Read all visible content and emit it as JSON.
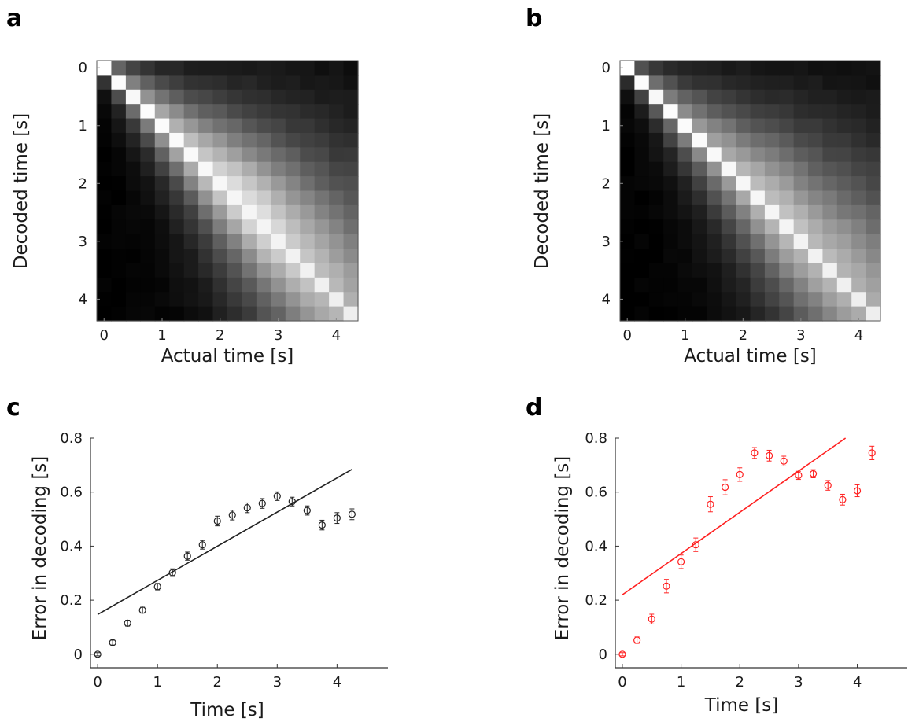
{
  "chart_data": [
    {
      "panel": "a",
      "type": "heatmap",
      "xlabel": "Actual time [s]",
      "ylabel": "Decoded time [s]",
      "x_ticks": [
        "0",
        "1",
        "2",
        "3",
        "4"
      ],
      "y_ticks": [
        "0",
        "1",
        "2",
        "3",
        "4"
      ],
      "xlim": [
        -0.125,
        4.375
      ],
      "ylim": [
        -0.125,
        4.375
      ],
      "bin_size": 0.25,
      "colormap": "grayscale",
      "off_diagonal_gain": 0.59,
      "off_diagonal_gain_fade": 0.35
    },
    {
      "panel": "b",
      "type": "heatmap",
      "xlabel": "Actual time [s]",
      "ylabel": "Decoded time [s]",
      "x_ticks": [
        "0",
        "1",
        "2",
        "3",
        "4"
      ],
      "y_ticks": [
        "0",
        "1",
        "2",
        "3",
        "4"
      ],
      "xlim": [
        -0.125,
        4.375
      ],
      "ylim": [
        -0.125,
        4.375
      ],
      "bin_size": 0.25,
      "colormap": "grayscale",
      "off_diagonal_gain": 0.5,
      "off_diagonal_gain_fade": 0.18
    },
    {
      "panel": "c",
      "type": "scatter",
      "color": "#222222",
      "xlabel": "Time [s]",
      "ylabel": "Error in decoding [s]",
      "x_ticks": [
        "0",
        "1",
        "2",
        "3",
        "4"
      ],
      "y_ticks": [
        "0",
        "0.2",
        "0.4",
        "0.6",
        "0.8"
      ],
      "xlim": [
        -0.12,
        4.85
      ],
      "ylim": [
        -0.05,
        0.8
      ],
      "x": [
        0,
        0.25,
        0.5,
        0.75,
        1,
        1.25,
        1.5,
        1.75,
        2,
        2.25,
        2.5,
        2.75,
        3,
        3.25,
        3.5,
        3.75,
        4,
        4.25
      ],
      "y": [
        0.0,
        0.043,
        0.115,
        0.163,
        0.25,
        0.302,
        0.363,
        0.405,
        0.493,
        0.515,
        0.542,
        0.558,
        0.585,
        0.565,
        0.532,
        0.478,
        0.504,
        0.518
      ],
      "errors": [
        0.006,
        0.009,
        0.011,
        0.011,
        0.012,
        0.014,
        0.015,
        0.016,
        0.018,
        0.018,
        0.018,
        0.018,
        0.016,
        0.016,
        0.017,
        0.018,
        0.02,
        0.02
      ],
      "fit_line": {
        "x": [
          0,
          4.25
        ],
        "y": [
          0.147,
          0.684
        ]
      }
    },
    {
      "panel": "d",
      "type": "scatter",
      "color": "#ff2020",
      "xlabel": "Time [s]",
      "ylabel": "Error in decoding [s]",
      "x_ticks": [
        "0",
        "1",
        "2",
        "3",
        "4"
      ],
      "y_ticks": [
        "0",
        "0.2",
        "0.4",
        "0.6",
        "0.8"
      ],
      "xlim": [
        -0.12,
        4.85
      ],
      "ylim": [
        -0.05,
        0.8
      ],
      "x": [
        0,
        0.25,
        0.5,
        0.75,
        1,
        1.25,
        1.5,
        1.75,
        2,
        2.25,
        2.5,
        2.75,
        3,
        3.25,
        3.5,
        3.75,
        4,
        4.25
      ],
      "y": [
        0.0,
        0.052,
        0.13,
        0.252,
        0.342,
        0.405,
        0.555,
        0.618,
        0.665,
        0.745,
        0.735,
        0.715,
        0.662,
        0.668,
        0.625,
        0.572,
        0.605,
        0.745
      ],
      "errors": [
        0.006,
        0.012,
        0.018,
        0.025,
        0.025,
        0.025,
        0.028,
        0.028,
        0.025,
        0.02,
        0.02,
        0.018,
        0.015,
        0.015,
        0.018,
        0.02,
        0.022,
        0.025
      ],
      "fit_line": {
        "x": [
          0,
          3.8
        ],
        "y": [
          0.22,
          0.8
        ]
      }
    }
  ]
}
